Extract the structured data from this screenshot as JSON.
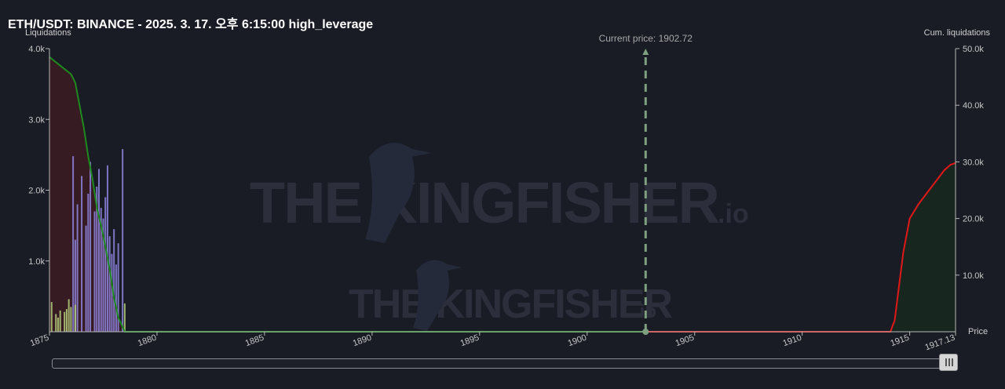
{
  "title": "ETH/USDT: BINANCE - 2025. 3. 17. 오후 6:15:00 high_leverage",
  "watermark": "THE KINGFISHER",
  "watermark_suffix": ".io",
  "chart_data": {
    "type": "bar+area",
    "left_axis": {
      "label": "Liquidations",
      "ticks": [
        "4.0k",
        "3.0k",
        "2.0k",
        "1.0k"
      ],
      "ylim": [
        0,
        4000
      ]
    },
    "right_axis": {
      "label": "Cum. liquidations",
      "ticks": [
        "50.0k",
        "40.0k",
        "30.0k",
        "20.0k",
        "10.0k"
      ],
      "ylim": [
        0,
        50000
      ]
    },
    "x_axis": {
      "label": "Price",
      "ticks": [
        "1875",
        "1880",
        "1885",
        "1890",
        "1895",
        "1900",
        "1905",
        "1910",
        "1915",
        "1917.13"
      ],
      "xlim": [
        1875,
        1917.13
      ]
    },
    "current_price": {
      "label": "Current price: 1902.72",
      "value": 1902.72
    },
    "series": [
      {
        "kind": "bars",
        "color": "#8f86e0",
        "points": [
          [
            1876.1,
            2480
          ],
          [
            1876.3,
            1800
          ],
          [
            1876.5,
            2200
          ],
          [
            1876.7,
            1500
          ],
          [
            1876.9,
            2400
          ],
          [
            1877.1,
            1700
          ],
          [
            1877.3,
            2300
          ],
          [
            1877.5,
            1600
          ],
          [
            1877.7,
            2350
          ],
          [
            1877.9,
            1100
          ],
          [
            1876.2,
            1300
          ],
          [
            1876.8,
            1950
          ],
          [
            1877.2,
            2050
          ],
          [
            1877.6,
            1900
          ],
          [
            1877.8,
            1350
          ],
          [
            1878.0,
            1450
          ],
          [
            1878.2,
            1250
          ],
          [
            1878.4,
            2580
          ],
          [
            1878.1,
            950
          ],
          [
            1877.4,
            1750
          ]
        ]
      },
      {
        "kind": "bars",
        "color": "#b5cf7a",
        "points": [
          [
            1875.1,
            420
          ],
          [
            1875.3,
            250
          ],
          [
            1875.5,
            300
          ],
          [
            1875.7,
            280
          ],
          [
            1875.9,
            460
          ],
          [
            1876.0,
            350
          ],
          [
            1876.2,
            380
          ],
          [
            1875.4,
            200
          ],
          [
            1875.8,
            320
          ],
          [
            1878.5,
            400
          ]
        ]
      },
      {
        "kind": "cumulative-short",
        "color": "#1e8a1e",
        "points": [
          [
            1875.0,
            48500
          ],
          [
            1875.5,
            47000
          ],
          [
            1876.0,
            45500
          ],
          [
            1876.2,
            44000
          ],
          [
            1876.4,
            40000
          ],
          [
            1876.6,
            36000
          ],
          [
            1876.8,
            31000
          ],
          [
            1877.0,
            27000
          ],
          [
            1877.2,
            22000
          ],
          [
            1877.5,
            17000
          ],
          [
            1877.8,
            11000
          ],
          [
            1878.0,
            6000
          ],
          [
            1878.2,
            2500
          ],
          [
            1878.5,
            0
          ],
          [
            1902.72,
            0
          ]
        ]
      },
      {
        "kind": "cumulative-long",
        "color": "#e01818",
        "points": [
          [
            1902.72,
            0
          ],
          [
            1914.1,
            0
          ],
          [
            1914.3,
            2000
          ],
          [
            1914.5,
            8000
          ],
          [
            1914.7,
            14000
          ],
          [
            1915.0,
            20000
          ],
          [
            1915.4,
            22500
          ],
          [
            1915.8,
            24500
          ],
          [
            1916.2,
            26500
          ],
          [
            1916.6,
            28500
          ],
          [
            1916.9,
            29500
          ],
          [
            1917.13,
            29800
          ]
        ]
      }
    ]
  }
}
